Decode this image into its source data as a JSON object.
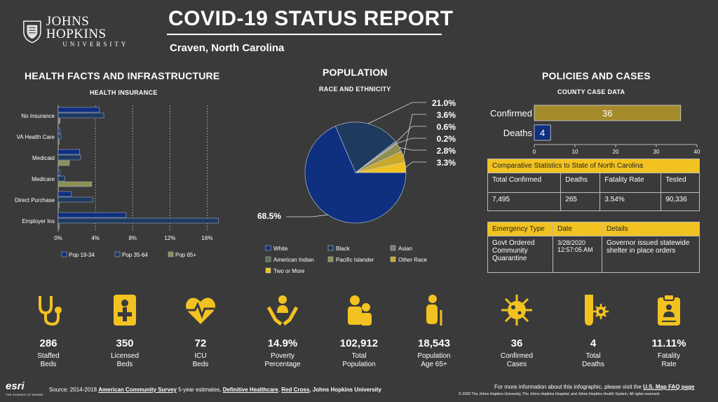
{
  "header": {
    "logo_name": "JOHNS HOPKINS",
    "logo_sub": "UNIVERSITY",
    "title": "COVID-19 STATUS REPORT",
    "location": "Craven,  North Carolina"
  },
  "health": {
    "section_title": "HEALTH FACTS AND INFRASTRUCTURE",
    "chart_title": "HEALTH INSURANCE"
  },
  "population": {
    "section_title": "POPULATION",
    "chart_title": "RACE AND ETHNICITY"
  },
  "policies": {
    "section_title": "POLICIES AND CASES",
    "chart_title": "COUNTY CASE DATA",
    "comparative": {
      "title": "Comparative Statistics to State of North Carolina",
      "headers": [
        "Total Confirmed",
        "Deaths",
        "Fatality Rate",
        "Tested"
      ],
      "values": [
        "7,495",
        "265",
        "3.54%",
        "90,336"
      ]
    },
    "emergency": {
      "headers": [
        "Emergency Type",
        "Date",
        "Details"
      ],
      "type": "Govt Ordered Community Quarantine",
      "date": "3/28/2020 12:57:05 AM",
      "details": "Governor issued statewide shelter in place orders"
    }
  },
  "stats": [
    {
      "value": "286",
      "label1": "Staffed",
      "label2": "Beds",
      "icon": "stethoscope-icon"
    },
    {
      "value": "350",
      "label1": "Licensed",
      "label2": "Beds",
      "icon": "medical-id-icon"
    },
    {
      "value": "72",
      "label1": "ICU",
      "label2": "Beds",
      "icon": "heartbeat-icon"
    },
    {
      "value": "14.9%",
      "label1": "Poverty",
      "label2": "Percentage",
      "icon": "helping-hands-icon"
    },
    {
      "value": "102,912",
      "label1": "Total",
      "label2": "Population",
      "icon": "people-icon"
    },
    {
      "value": "18,543",
      "label1": "Population",
      "label2": "Age 65+",
      "icon": "elderly-icon"
    },
    {
      "value": "36",
      "label1": "Confirmed",
      "label2": "Cases",
      "icon": "virus-icon"
    },
    {
      "value": "4",
      "label1": "Total",
      "label2": "Deaths",
      "icon": "test-tube-icon"
    },
    {
      "value": "11.11%",
      "label1": "Fatality",
      "label2": "Rate",
      "icon": "clipboard-icon"
    }
  ],
  "footer": {
    "esri": "esri",
    "esri_tag": "THE SCIENCE OF WHERE",
    "source_prefix": "Source: 2014-2018 ",
    "acs": "American Community Survey",
    "acs_suffix": " 5-year estimates, ",
    "dh": "Definitive Healthcare",
    "sep": ", ",
    "rc": "Red Cross",
    "jhu": ", Johns Hopkins University",
    "more_prefix": "For more information about this infographic, please visit the ",
    "faq": "U.S. Map FAQ page",
    "copyright": "© 2020 The Johns Hopkins University, The Johns Hopkins Hospital, and Johns Hopkins Health System. All rights reserved."
  },
  "colors": {
    "background": "#3a3a3a",
    "accent_yellow": "#f2c220",
    "navy": "#0f2f7f",
    "slate": "#1f3a5f",
    "olive": "#8f8f52",
    "bar_gold": "#a58a2b"
  },
  "chart_data": [
    {
      "type": "bar",
      "orientation": "horizontal",
      "title": "HEALTH INSURANCE",
      "categories": [
        "No Insurance",
        "VA Health Care",
        "Medicaid",
        "Medicare",
        "Direct Purchase",
        "Employer Ins"
      ],
      "series": [
        {
          "name": "Pop 19-34",
          "color": "#0f2f7f",
          "values": [
            4.4,
            0.2,
            2.3,
            0.2,
            1.4,
            7.3
          ]
        },
        {
          "name": "Pop 35-64",
          "color": "#1f3a5f",
          "values": [
            4.9,
            0.3,
            2.4,
            0.7,
            3.7,
            17.2
          ]
        },
        {
          "name": "Pop 65+",
          "color": "#8f8f52",
          "values": [
            0.2,
            0.1,
            1.2,
            3.6,
            0.1,
            0.1
          ]
        }
      ],
      "xlim": [
        0,
        18
      ],
      "xticks": [
        "0%",
        "4%",
        "8%",
        "12%",
        "16%"
      ],
      "legend": "bottom"
    },
    {
      "type": "pie",
      "title": "RACE AND ETHNICITY",
      "slices": [
        {
          "label": "White",
          "value": 68.5,
          "color": "#0f2f7f"
        },
        {
          "label": "Black",
          "value": 21.0,
          "color": "#1f3a5f"
        },
        {
          "label": "Asian",
          "value": 0.6,
          "color": "#7a7a7a"
        },
        {
          "label": "American Indian",
          "value": 0.2,
          "color": "#5f6f52"
        },
        {
          "label": "Pacific Islander",
          "value": 2.8,
          "color": "#8f8f52"
        },
        {
          "label": "Other Race",
          "value": 3.6,
          "color": "#c9a82a"
        },
        {
          "label": "Two or More",
          "value": 3.3,
          "color": "#f2c220"
        }
      ],
      "outer_labels": [
        "21.0%",
        "3.6%",
        "0.6%",
        "0.2%",
        "2.8%",
        "3.3%"
      ],
      "big_label": "68.5%",
      "legend": "bottom"
    },
    {
      "type": "bar",
      "orientation": "horizontal",
      "title": "COUNTY CASE DATA",
      "categories": [
        "Confirmed",
        "Deaths"
      ],
      "values": [
        36,
        4
      ],
      "xlim": [
        0,
        40
      ],
      "xticks": [
        "0",
        "10",
        "20",
        "30",
        "40"
      ]
    }
  ]
}
